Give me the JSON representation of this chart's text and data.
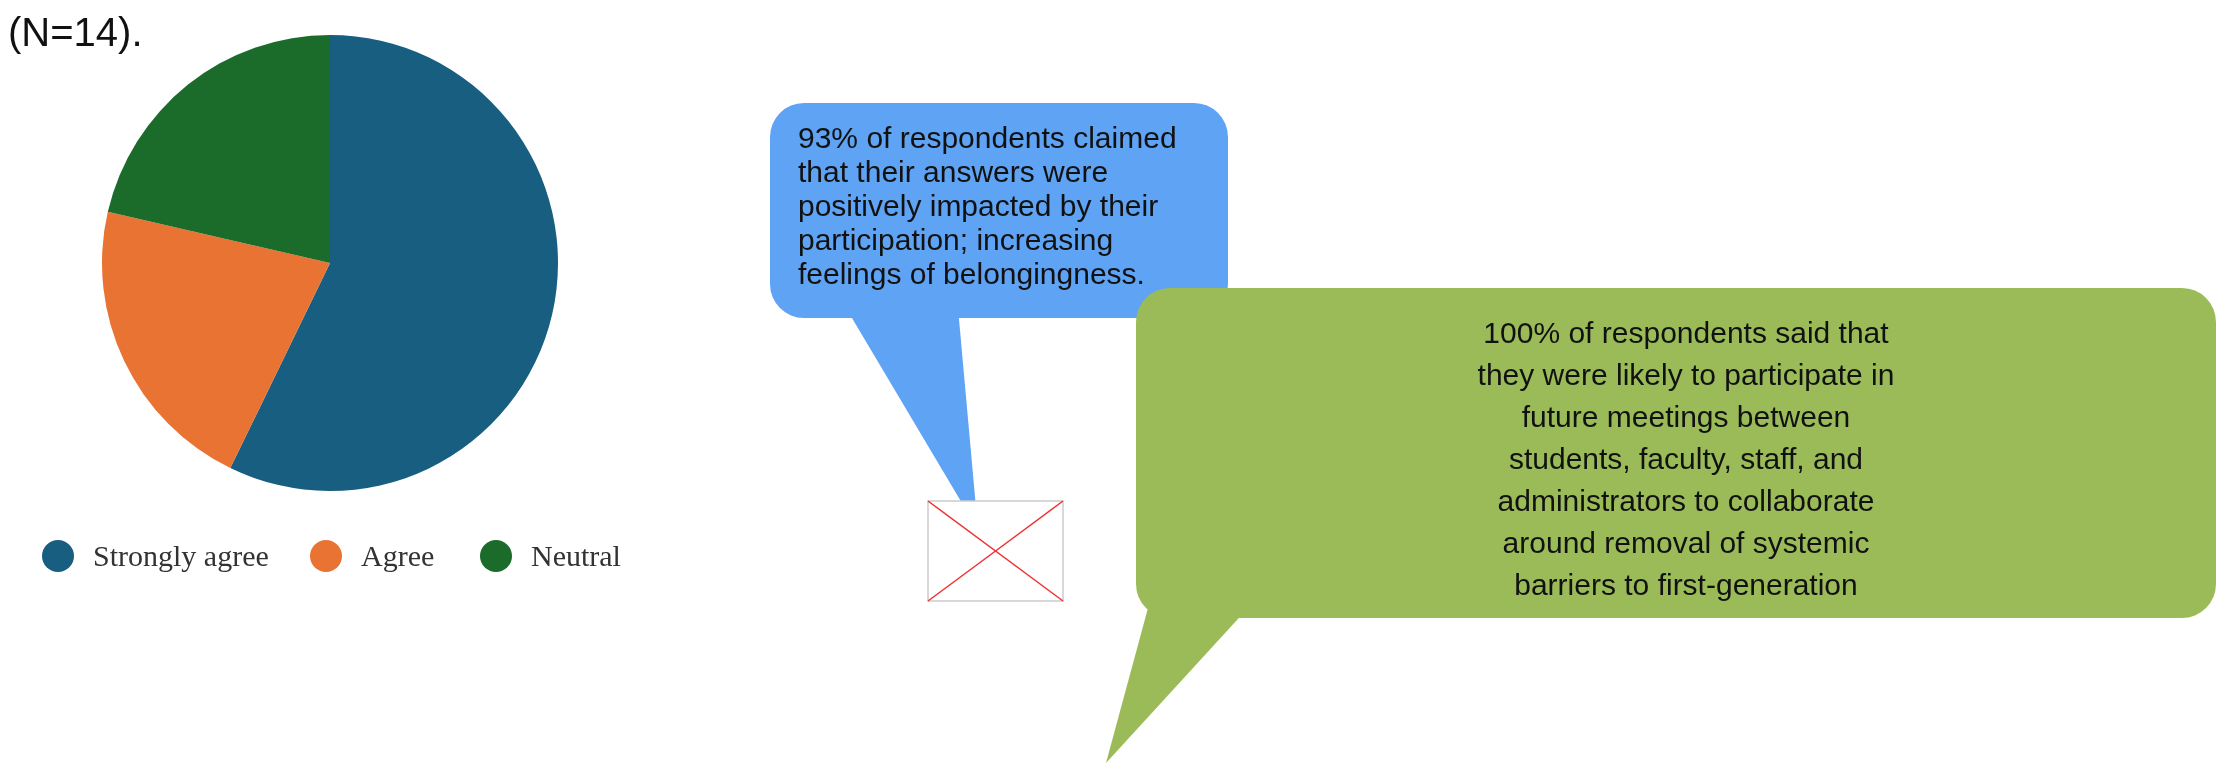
{
  "chart_data": {
    "type": "pie",
    "title": "(N=14).",
    "categories": [
      "Strongly agree",
      "Agree",
      "Neutral"
    ],
    "values": [
      57.2,
      21.4,
      21.4
    ],
    "colors": [
      "#175e80",
      "#e97333",
      "#1b6b2b"
    ],
    "legend": "bottom left",
    "annotations": [
      "93% of  respondents claimed\nthat their  answers were\npositively impacted by their\nparticipation;  increasing\nfeelings of belongingness.",
      "100% of respondents said that\nthey were likely to participate in\nfuture meetings between\nstudents, faculty, staff, and\nadministrators to collaborate\naround removal of systemic\nbarriers to first-generation"
    ]
  }
}
